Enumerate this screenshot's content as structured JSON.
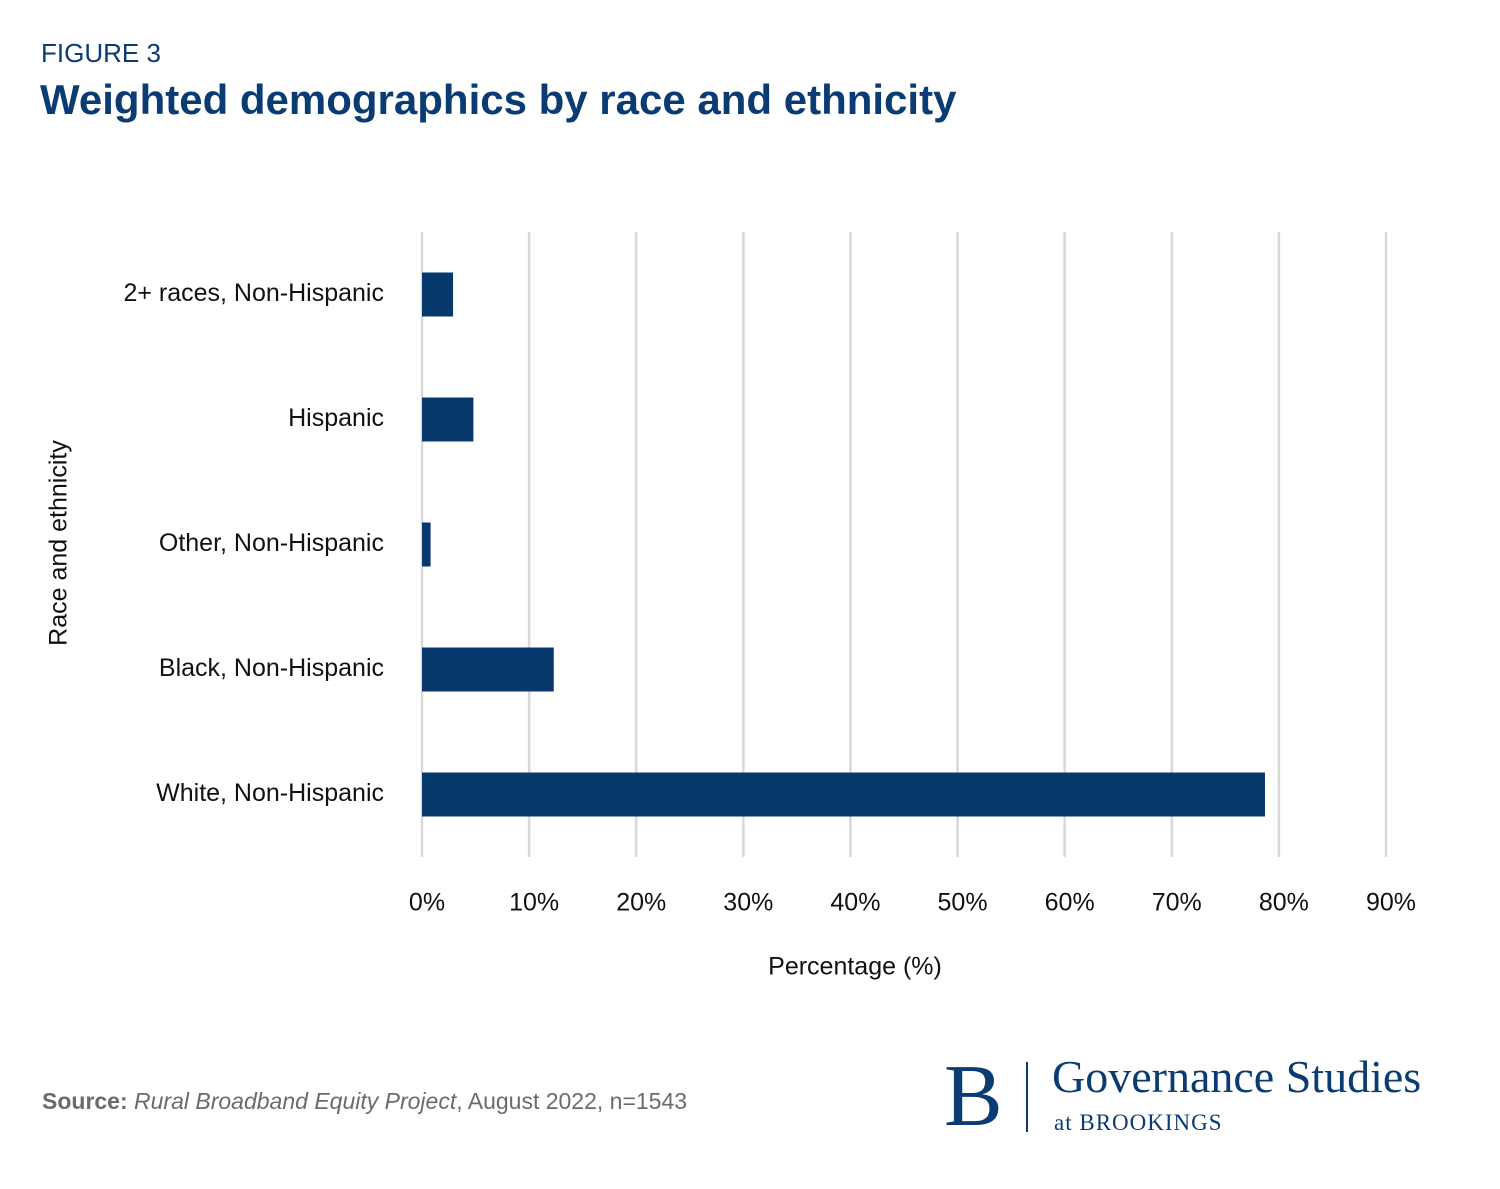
{
  "chart_data": {
    "type": "bar",
    "orientation": "horizontal",
    "figure_label": "FIGURE 3",
    "title": "Weighted demographics by race and ethnicity",
    "x_label": "Percentage (%)",
    "y_label": "Race and ethnicity",
    "categories": [
      "2+ races, Non-Hispanic",
      "Hispanic",
      "Other, Non-Hispanic",
      "Black, Non-Hispanic",
      "White, Non-Hispanic"
    ],
    "values": [
      2.9,
      4.8,
      0.8,
      12.3,
      78.7
    ],
    "color": "#08396d",
    "xlim": [
      0,
      90
    ],
    "xticks": [
      {
        "value": 0,
        "label": "0%"
      },
      {
        "value": 10,
        "label": "10%"
      },
      {
        "value": 20,
        "label": "20%"
      },
      {
        "value": 30,
        "label": "30%"
      },
      {
        "value": 40,
        "label": "40%"
      },
      {
        "value": 50,
        "label": "50%"
      },
      {
        "value": 60,
        "label": "60%"
      },
      {
        "value": 70,
        "label": "70%"
      },
      {
        "value": 80,
        "label": "80%"
      },
      {
        "value": 90,
        "label": "90%"
      }
    ],
    "grid": true,
    "source": {
      "label": "Source:",
      "title": "Rural Broadband Equity Project",
      "rest": ", August 2022, n=1543"
    },
    "logo": {
      "letter": "B",
      "name": "Governance Studies",
      "sub": "at BROOKINGS"
    }
  }
}
